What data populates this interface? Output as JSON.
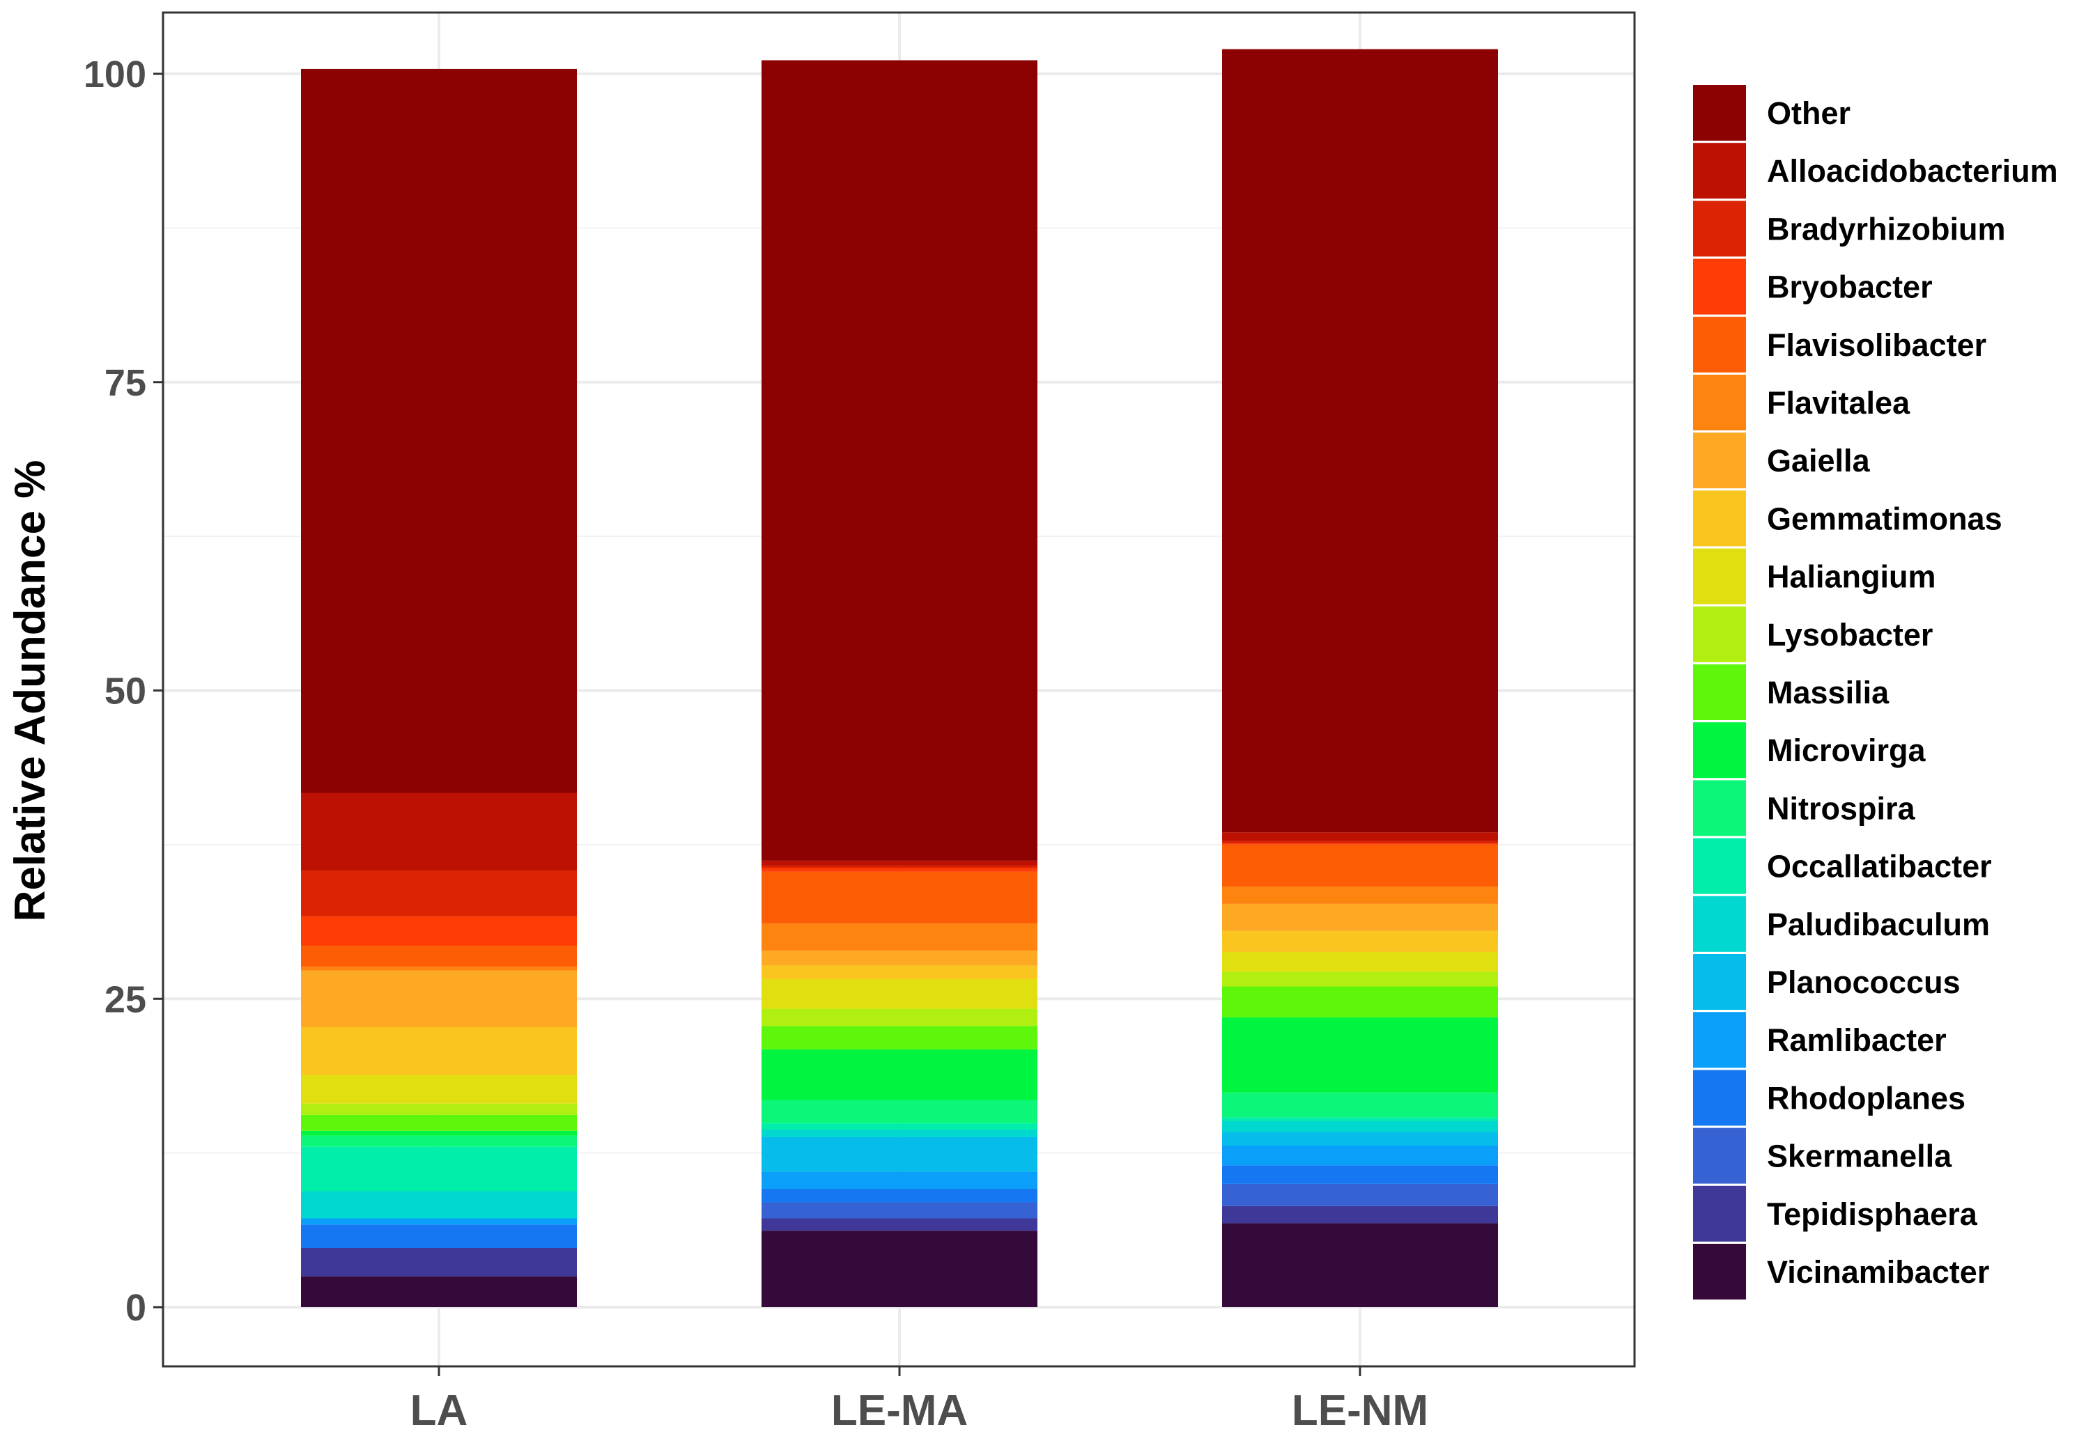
{
  "chart_data": {
    "type": "bar",
    "stacked": true,
    "xlabel": "",
    "ylabel": "Relative Adundance %",
    "ylim": [
      -4,
      105
    ],
    "yticks": [
      0,
      25,
      50,
      75,
      100
    ],
    "grid": true,
    "legend_position": "right",
    "categories": [
      "LA",
      "LE-MA",
      "LE-NM"
    ],
    "series": [
      {
        "name": "Vicinamibacter",
        "color": "#35093a",
        "values": [
          2.5,
          6.2,
          6.8
        ]
      },
      {
        "name": "Tepidisphaera",
        "color": "#3f3898",
        "values": [
          2.3,
          1.0,
          1.4
        ]
      },
      {
        "name": "Skermanella",
        "color": "#3762d4",
        "values": [
          0.0,
          1.3,
          1.8
        ]
      },
      {
        "name": "Rhodoplanes",
        "color": "#1578f2",
        "values": [
          1.9,
          1.1,
          1.5
        ]
      },
      {
        "name": "Ramlibacter",
        "color": "#0aa0fa",
        "values": [
          0.5,
          1.4,
          1.6
        ]
      },
      {
        "name": "Planococcus",
        "color": "#05bcea",
        "values": [
          0.0,
          2.8,
          1.1
        ]
      },
      {
        "name": "Paludibaculum",
        "color": "#00d8d0",
        "values": [
          2.2,
          0.6,
          0.9
        ]
      },
      {
        "name": "Occallatibacter",
        "color": "#00eeaa",
        "values": [
          3.6,
          0.5,
          0.3
        ]
      },
      {
        "name": "Nitrospira",
        "color": "#0cf77a",
        "values": [
          0.9,
          1.9,
          2.0
        ]
      },
      {
        "name": "Microvirga",
        "color": "#00f540",
        "values": [
          0.4,
          4.1,
          6.1
        ]
      },
      {
        "name": "Massilia",
        "color": "#5ef70c",
        "values": [
          1.3,
          1.9,
          2.5
        ]
      },
      {
        "name": "Lysobacter",
        "color": "#b0ef10",
        "values": [
          0.9,
          1.4,
          1.2
        ]
      },
      {
        "name": "Haliangium",
        "color": "#e2df10",
        "values": [
          2.3,
          2.4,
          1.6
        ]
      },
      {
        "name": "Gemmatimonas",
        "color": "#fbc520",
        "values": [
          3.9,
          1.1,
          1.7
        ]
      },
      {
        "name": "Gaiella",
        "color": "#fea924",
        "values": [
          4.6,
          1.2,
          2.2
        ]
      },
      {
        "name": "Flavitalea",
        "color": "#fe8410",
        "values": [
          0.3,
          2.2,
          1.4
        ]
      },
      {
        "name": "Flavisolibacter",
        "color": "#fd5e05",
        "values": [
          1.7,
          4.2,
          3.4
        ]
      },
      {
        "name": "Bryobacter",
        "color": "#ff3c04",
        "values": [
          2.4,
          0.3,
          0.1
        ]
      },
      {
        "name": "Bradyrhizobium",
        "color": "#dc2304",
        "values": [
          3.7,
          0.2,
          0.2
        ]
      },
      {
        "name": "Alloacidobacterium",
        "color": "#bd1103",
        "values": [
          6.3,
          0.4,
          0.7
        ]
      },
      {
        "name": "Other",
        "color": "#8c0202",
        "values": [
          58.7,
          64.9,
          63.5
        ]
      }
    ]
  }
}
